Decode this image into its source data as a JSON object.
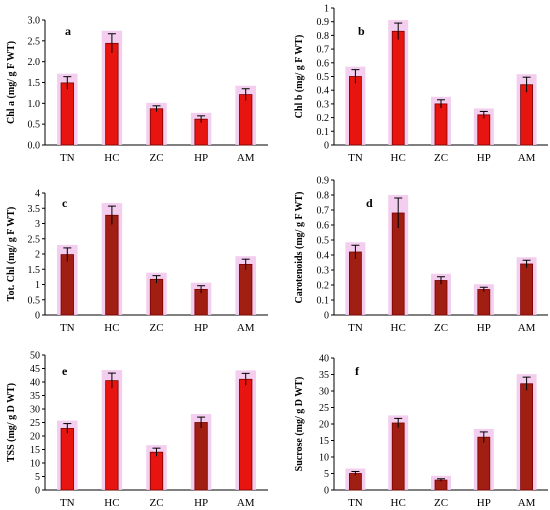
{
  "colors": {
    "bar": "#e8140f",
    "bar_edge": "#7a0000",
    "bar_dark": "#a01e12",
    "halo": "#f2c6ec",
    "axis": "#000000"
  },
  "chart_data": [
    {
      "type": "bar",
      "panel": "a",
      "ylabel": "Chl a (mg/ g F WT)",
      "categories": [
        "TN",
        "HC",
        "ZC",
        "HP",
        "AM"
      ],
      "values": [
        1.49,
        2.44,
        0.87,
        0.62,
        1.21
      ],
      "errors": [
        0.15,
        0.23,
        0.07,
        0.08,
        0.14
      ],
      "ylim": [
        0,
        3
      ],
      "yticks": [
        "0.0",
        "0.5",
        "1.0",
        "1.5",
        "2.0",
        "2.5",
        "3.0"
      ],
      "grid": false,
      "legend": "none"
    },
    {
      "type": "bar",
      "panel": "b",
      "ylabel": "Chl b (mg/ g F WT)",
      "categories": [
        "TN",
        "HC",
        "ZC",
        "HP",
        "AM"
      ],
      "values": [
        0.5,
        0.83,
        0.3,
        0.22,
        0.44
      ],
      "errors": [
        0.05,
        0.06,
        0.03,
        0.025,
        0.055
      ],
      "ylim": [
        0,
        1
      ],
      "yticks": [
        "0",
        "0.1",
        "0.2",
        "0.3",
        "0.4",
        "0.5",
        "0.6",
        "0.7",
        "0.8",
        "0.9",
        "1"
      ],
      "grid": false,
      "legend": "none"
    },
    {
      "type": "bar",
      "panel": "c",
      "ylabel": "Tot. Chl (mg/ g F WT)",
      "categories": [
        "TN",
        "HC",
        "ZC",
        "HP",
        "AM"
      ],
      "values": [
        1.98,
        3.27,
        1.17,
        0.84,
        1.66
      ],
      "errors": [
        0.22,
        0.3,
        0.12,
        0.12,
        0.17
      ],
      "ylim": [
        0,
        4
      ],
      "yticks": [
        "0",
        "0.5",
        "1",
        "1.5",
        "2",
        "2.5",
        "3",
        "3.5",
        "4"
      ],
      "grid": false,
      "legend": "none"
    },
    {
      "type": "bar",
      "panel": "d",
      "ylabel": "Carotenoids (mg/ g F WT)",
      "categories": [
        "TN",
        "HC",
        "ZC",
        "HP",
        "AM"
      ],
      "values": [
        0.42,
        0.68,
        0.23,
        0.17,
        0.34
      ],
      "errors": [
        0.045,
        0.1,
        0.025,
        0.015,
        0.025
      ],
      "ylim": [
        0,
        0.9
      ],
      "yticks": [
        "0",
        "0.1",
        "0.2",
        "0.3",
        "0.4",
        "0.5",
        "0.6",
        "0.7",
        "0.8",
        "0.9"
      ],
      "grid": false,
      "legend": "none"
    },
    {
      "type": "bar",
      "panel": "e",
      "ylabel": "TSS (mg/ g D WT)",
      "categories": [
        "TN",
        "HC",
        "ZC",
        "HP",
        "AM"
      ],
      "values": [
        22.8,
        40.5,
        14.0,
        25.0,
        41.0
      ],
      "errors": [
        1.8,
        2.8,
        1.5,
        2.0,
        2.2
      ],
      "ylim": [
        0,
        50
      ],
      "yticks": [
        "0",
        "5",
        "10",
        "15",
        "20",
        "25",
        "30",
        "35",
        "40",
        "45",
        "50"
      ],
      "grid": false,
      "legend": "none"
    },
    {
      "type": "bar",
      "panel": "f",
      "ylabel": "Sucrose (mg/ g D WT)",
      "categories": [
        "TN",
        "HC",
        "ZC",
        "HP",
        "AM"
      ],
      "values": [
        5.0,
        20.3,
        3.0,
        16.0,
        32.2
      ],
      "errors": [
        0.6,
        1.4,
        0.4,
        1.6,
        2.0
      ],
      "ylim": [
        0,
        40
      ],
      "yticks": [
        "0",
        "5",
        "10",
        "15",
        "20",
        "25",
        "30",
        "35",
        "40"
      ],
      "grid": false,
      "legend": "none"
    }
  ]
}
